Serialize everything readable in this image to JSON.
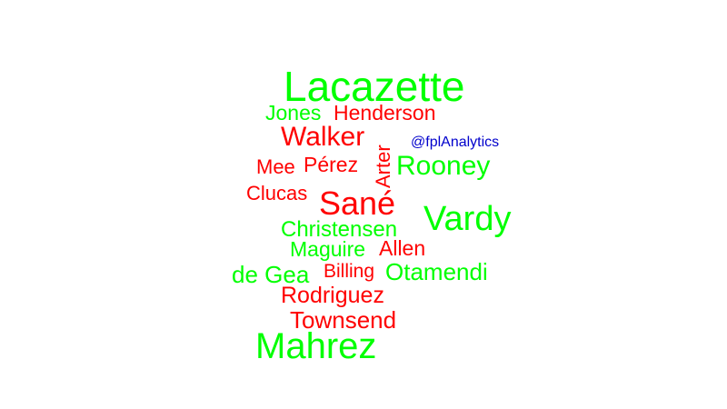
{
  "colors": {
    "green": "#00ff00",
    "red": "#ff0000",
    "blue": "#0000cc",
    "background": "#ffffff"
  },
  "words": {
    "lacazette": "Lacazette",
    "jones": "Jones",
    "henderson": "Henderson",
    "walker": "Walker",
    "handle": "@fplAnalytics",
    "arter": "Arter",
    "mee": "Mee",
    "perez": "Pérez",
    "rooney": "Rooney",
    "clucas": "Clucas",
    "sane": "Sané",
    "vardy": "Vardy",
    "christensen": "Christensen",
    "maguire": "Maguire",
    "allen": "Allen",
    "degea": "de Gea",
    "billing": "Billing",
    "otamendi": "Otamendi",
    "rodriguez": "Rodriguez",
    "townsend": "Townsend",
    "mahrez": "Mahrez"
  }
}
